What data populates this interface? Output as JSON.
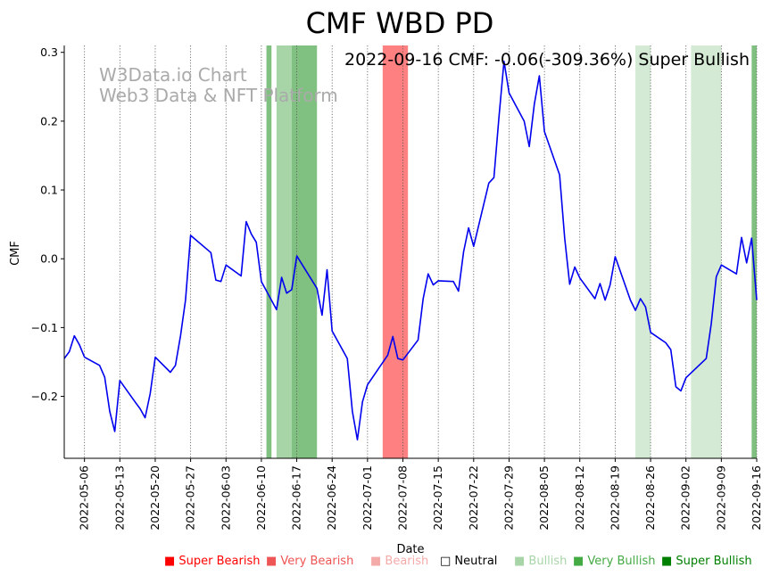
{
  "chart_data": {
    "type": "line",
    "title": "CMF WBD PD",
    "annotation": "2022-09-16 CMF: -0.06(-309.36%) Super Bullish",
    "watermark": [
      "W3Data.io Chart",
      "Web3 Data & NFT Platform"
    ],
    "xlabel": "Date",
    "ylabel": "CMF",
    "xlim": [
      "2022-05-02",
      "2022-09-16"
    ],
    "ylim": [
      -0.29,
      0.31
    ],
    "x_ticks": [
      "2022-05-06",
      "2022-05-13",
      "2022-05-20",
      "2022-05-27",
      "2022-06-03",
      "2022-06-10",
      "2022-06-17",
      "2022-06-24",
      "2022-07-01",
      "2022-07-08",
      "2022-07-15",
      "2022-07-22",
      "2022-07-29",
      "2022-08-05",
      "2022-08-12",
      "2022-08-19",
      "2022-08-26",
      "2022-09-02",
      "2022-09-09",
      "2022-09-16"
    ],
    "y_ticks": [
      {
        "value": 0.3,
        "label": "0.3"
      },
      {
        "value": 0.2,
        "label": "0.2"
      },
      {
        "value": 0.1,
        "label": "0.1"
      },
      {
        "value": 0.0,
        "label": "0.0"
      },
      {
        "value": -0.1,
        "label": "−0.1"
      },
      {
        "value": -0.2,
        "label": "−0.2"
      }
    ],
    "series": [
      {
        "name": "CMF",
        "color": "#0000ee",
        "points": [
          [
            "2022-05-02",
            -0.145
          ],
          [
            "2022-05-03",
            -0.135
          ],
          [
            "2022-05-04",
            -0.112
          ],
          [
            "2022-05-05",
            -0.125
          ],
          [
            "2022-05-06",
            -0.143
          ],
          [
            "2022-05-09",
            -0.155
          ],
          [
            "2022-05-10",
            -0.172
          ],
          [
            "2022-05-11",
            -0.222
          ],
          [
            "2022-05-12",
            -0.251
          ],
          [
            "2022-05-13",
            -0.177
          ],
          [
            "2022-05-16",
            -0.208
          ],
          [
            "2022-05-17",
            -0.218
          ],
          [
            "2022-05-18",
            -0.231
          ],
          [
            "2022-05-19",
            -0.196
          ],
          [
            "2022-05-20",
            -0.143
          ],
          [
            "2022-05-23",
            -0.165
          ],
          [
            "2022-05-24",
            -0.155
          ],
          [
            "2022-05-25",
            -0.112
          ],
          [
            "2022-05-26",
            -0.06
          ],
          [
            "2022-05-27",
            0.034
          ],
          [
            "2022-05-31",
            0.009
          ],
          [
            "2022-06-01",
            -0.031
          ],
          [
            "2022-06-02",
            -0.033
          ],
          [
            "2022-06-03",
            -0.009
          ],
          [
            "2022-06-06",
            -0.025
          ],
          [
            "2022-06-07",
            0.054
          ],
          [
            "2022-06-08",
            0.036
          ],
          [
            "2022-06-09",
            0.024
          ],
          [
            "2022-06-10",
            -0.033
          ],
          [
            "2022-06-13",
            -0.074
          ],
          [
            "2022-06-14",
            -0.027
          ],
          [
            "2022-06-15",
            -0.05
          ],
          [
            "2022-06-16",
            -0.045
          ],
          [
            "2022-06-17",
            0.004
          ],
          [
            "2022-06-21",
            -0.043
          ],
          [
            "2022-06-22",
            -0.082
          ],
          [
            "2022-06-23",
            -0.016
          ],
          [
            "2022-06-24",
            -0.105
          ],
          [
            "2022-06-27",
            -0.145
          ],
          [
            "2022-06-28",
            -0.222
          ],
          [
            "2022-06-29",
            -0.263
          ],
          [
            "2022-06-30",
            -0.208
          ],
          [
            "2022-07-01",
            -0.183
          ],
          [
            "2022-07-05",
            -0.14
          ],
          [
            "2022-07-06",
            -0.113
          ],
          [
            "2022-07-07",
            -0.145
          ],
          [
            "2022-07-08",
            -0.147
          ],
          [
            "2022-07-11",
            -0.118
          ],
          [
            "2022-07-12",
            -0.058
          ],
          [
            "2022-07-13",
            -0.022
          ],
          [
            "2022-07-14",
            -0.038
          ],
          [
            "2022-07-15",
            -0.032
          ],
          [
            "2022-07-18",
            -0.033
          ],
          [
            "2022-07-19",
            -0.047
          ],
          [
            "2022-07-20",
            0.01
          ],
          [
            "2022-07-21",
            0.045
          ],
          [
            "2022-07-22",
            0.018
          ],
          [
            "2022-07-25",
            0.11
          ],
          [
            "2022-07-26",
            0.118
          ],
          [
            "2022-07-27",
            0.205
          ],
          [
            "2022-07-28",
            0.287
          ],
          [
            "2022-07-29",
            0.241
          ],
          [
            "2022-08-01",
            0.2
          ],
          [
            "2022-08-02",
            0.163
          ],
          [
            "2022-08-03",
            0.225
          ],
          [
            "2022-08-04",
            0.266
          ],
          [
            "2022-08-05",
            0.185
          ],
          [
            "2022-08-08",
            0.122
          ],
          [
            "2022-08-09",
            0.03
          ],
          [
            "2022-08-10",
            -0.037
          ],
          [
            "2022-08-11",
            -0.012
          ],
          [
            "2022-08-12",
            -0.028
          ],
          [
            "2022-08-15",
            -0.058
          ],
          [
            "2022-08-16",
            -0.036
          ],
          [
            "2022-08-17",
            -0.06
          ],
          [
            "2022-08-18",
            -0.038
          ],
          [
            "2022-08-19",
            0.003
          ],
          [
            "2022-08-22",
            -0.06
          ],
          [
            "2022-08-23",
            -0.075
          ],
          [
            "2022-08-24",
            -0.058
          ],
          [
            "2022-08-25",
            -0.07
          ],
          [
            "2022-08-26",
            -0.107
          ],
          [
            "2022-08-29",
            -0.122
          ],
          [
            "2022-08-30",
            -0.132
          ],
          [
            "2022-08-31",
            -0.186
          ],
          [
            "2022-09-01",
            -0.192
          ],
          [
            "2022-09-02",
            -0.173
          ],
          [
            "2022-09-06",
            -0.145
          ],
          [
            "2022-09-07",
            -0.095
          ],
          [
            "2022-09-08",
            -0.026
          ],
          [
            "2022-09-09",
            -0.009
          ],
          [
            "2022-09-12",
            -0.022
          ],
          [
            "2022-09-13",
            0.031
          ],
          [
            "2022-09-14",
            -0.006
          ],
          [
            "2022-09-15",
            0.03
          ],
          [
            "2022-09-16",
            -0.06
          ]
        ]
      }
    ],
    "regions": [
      {
        "start": "2022-06-11",
        "end": "2022-06-12",
        "category": "Very Bullish"
      },
      {
        "start": "2022-06-13",
        "end": "2022-06-16",
        "category": "Bullish"
      },
      {
        "start": "2022-06-16",
        "end": "2022-06-21",
        "category": "Very Bullish"
      },
      {
        "start": "2022-07-04",
        "end": "2022-07-09",
        "category": "Super Bearish"
      },
      {
        "start": "2022-08-23",
        "end": "2022-08-26",
        "category": "Neutral-Bullish"
      },
      {
        "start": "2022-09-03",
        "end": "2022-09-09",
        "category": "Neutral-Bullish"
      },
      {
        "start": "2022-09-15",
        "end": "2022-09-17",
        "category": "Very Bullish"
      }
    ],
    "region_colors": {
      "Super Bearish": "#ff8080",
      "Bullish": "#a8d5a8",
      "Very Bullish": "#80c080",
      "Neutral-Bullish": "#d4ead4"
    },
    "legend": [
      {
        "label": "Super Bearish",
        "color": "#ff0000",
        "marker": "■"
      },
      {
        "label": "Very Bearish",
        "color": "#ee5555",
        "marker": "■"
      },
      {
        "label": "Bearish",
        "color": "#f5aaaa",
        "marker": "■"
      },
      {
        "label": "Neutral",
        "color": "#000000",
        "marker": "□"
      },
      {
        "label": "Bullish",
        "color": "#a8d5a8",
        "marker": "■"
      },
      {
        "label": "Very Bullish",
        "color": "#44aa44",
        "marker": "■"
      },
      {
        "label": "Super Bullish",
        "color": "#008000",
        "marker": "■"
      }
    ]
  }
}
